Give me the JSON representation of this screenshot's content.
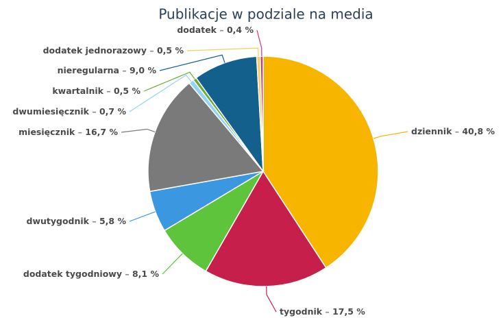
{
  "chart_data": {
    "type": "pie",
    "title": "Publikacje w podziale na media",
    "separator": "–",
    "categories": [
      "dziennik",
      "tygodnik",
      "dodatek tygodniowy",
      "dwutygodnik",
      "miesięcznik",
      "dwumiesięcznik",
      "kwartalnik",
      "nieregularna",
      "dodatek jednorazowy",
      "dodatek"
    ],
    "values": [
      40.8,
      17.5,
      8.1,
      5.8,
      16.7,
      0.7,
      0.5,
      9.0,
      0.5,
      0.4
    ],
    "value_labels": [
      "40,8 %",
      "17,5 %",
      "8,1 %",
      "5,8 %",
      "16,7 %",
      "0,7 %",
      "0,5 %",
      "9,0 %",
      "0,5 %",
      "0,4 %"
    ],
    "colors": [
      "#f8b500",
      "#c71f4b",
      "#5dc43b",
      "#3b98e0",
      "#7a7a7a",
      "#93d3f2",
      "#64ad36",
      "#14608c",
      "#f4cf5c",
      "#d4347b"
    ]
  }
}
